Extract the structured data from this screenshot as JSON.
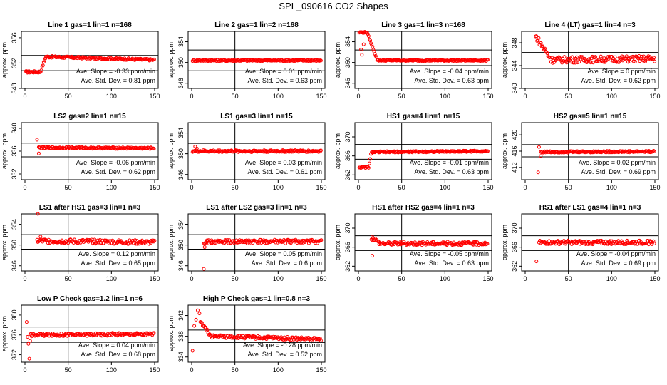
{
  "page": {
    "title": "SPL_090616  CO2 Shapes"
  },
  "chart_data": [
    {
      "type": "scatter",
      "title": "Line 1 gas=1 lin=1 n=168",
      "ylabel": "approx. ppm",
      "xlim": [
        0,
        150
      ],
      "ylim": [
        348,
        357
      ],
      "yticks": [
        "348",
        "352",
        "356"
      ],
      "xticks": [
        "0",
        "50",
        "100",
        "150"
      ],
      "bands": [
        350.8,
        353.2
      ],
      "vline": 50,
      "slope": "Ave. Slope = -0.33  ppm/min",
      "stddev": "Ave. Std. Dev. = 0.81  ppm",
      "shape": {
        "x0": 1,
        "pre_x": 18,
        "pre_v": 350.6,
        "ramp_x": 24,
        "base": 353.0,
        "base_end": 352.5,
        "noise": 0.15,
        "outliers": []
      }
    },
    {
      "type": "scatter",
      "title": "Line 2 gas=1 lin=2 n=168",
      "ylabel": "approx. ppm",
      "xlim": [
        0,
        150
      ],
      "ylim": [
        345,
        356
      ],
      "yticks": [
        "346",
        "350",
        "354"
      ],
      "xticks": [
        "0",
        "50",
        "100",
        "150"
      ],
      "bands": [
        348.4,
        352.4
      ],
      "vline": 50,
      "slope": "Ave. Slope = 0.01  ppm/min",
      "stddev": "Ave. Std. Dev. = 0.63  ppm",
      "shape": {
        "x0": 1,
        "pre_x": 1,
        "pre_v": 350.4,
        "ramp_x": 1,
        "base": 350.4,
        "base_end": 350.4,
        "noise": 0.15,
        "outliers": []
      }
    },
    {
      "type": "scatter",
      "title": "Line 3 gas=1 lin=3 n=168",
      "ylabel": "approx. ppm",
      "xlim": [
        0,
        150
      ],
      "ylim": [
        345,
        356
      ],
      "yticks": [
        "346",
        "350",
        "354"
      ],
      "xticks": [
        "0",
        "50",
        "100",
        "150"
      ],
      "bands": [
        349.4,
        352.4
      ],
      "vline": 50,
      "slope": "Ave. Slope = -0.04  ppm/min",
      "stddev": "Ave. Std. Dev. = 0.63  ppm",
      "shape": {
        "x0": 1,
        "pre_x": 10,
        "pre_v": 355.8,
        "ramp_x": 22,
        "base": 350.4,
        "base_end": 350.4,
        "noise": 0.12,
        "outliers": [
          [
            3,
            352.5
          ],
          [
            4,
            351.5
          ],
          [
            6,
            353.5
          ]
        ]
      }
    },
    {
      "type": "scatter",
      "title": "Line 4 (LT) gas=1 lin=4 n=3",
      "ylabel": "approx. ppm",
      "xlim": [
        0,
        150
      ],
      "ylim": [
        340,
        350
      ],
      "yticks": [
        "340",
        "344",
        "348"
      ],
      "xticks": [
        "0",
        "50",
        "100",
        "150"
      ],
      "bands": [
        343.5,
        346.3
      ],
      "vline": 50,
      "slope": "Ave. Slope = 0  ppm/min",
      "stddev": "Ave. Std. Dev. = 0.62  ppm",
      "shape": {
        "x0": 12,
        "pre_x": 13,
        "pre_v": 349.0,
        "ramp_x": 30,
        "base": 345.0,
        "base_end": 345.2,
        "noise": 0.55,
        "outliers": []
      }
    },
    {
      "type": "scatter",
      "title": "LS2 gas=2 lin=1 n=15",
      "ylabel": "approx. ppm",
      "xlim": [
        0,
        150
      ],
      "ylim": [
        331,
        341
      ],
      "yticks": [
        "332",
        "336",
        "340"
      ],
      "xticks": [
        "0",
        "50",
        "100",
        "150"
      ],
      "bands": [
        335.0,
        337.4
      ],
      "vline": 50,
      "slope": "Ave. Slope = -0.06  ppm/min",
      "stddev": "Ave. Std. Dev. = 0.62  ppm",
      "shape": {
        "x0": 16,
        "pre_x": 16,
        "pre_v": 336.6,
        "ramp_x": 16,
        "base": 336.6,
        "base_end": 336.5,
        "noise": 0.15,
        "outliers": [
          [
            14,
            338.0
          ],
          [
            16,
            335.6
          ]
        ]
      }
    },
    {
      "type": "scatter",
      "title": "LS1 gas=3 lin=1 n=15",
      "ylabel": "approx. ppm",
      "xlim": [
        0,
        150
      ],
      "ylim": [
        345,
        356
      ],
      "yticks": [
        "346",
        "350",
        "354"
      ],
      "xticks": [
        "0",
        "50",
        "100",
        "150"
      ],
      "bands": [
        349.2,
        352.0
      ],
      "vline": 50,
      "slope": "Ave. Slope = 0.03  ppm/min",
      "stddev": "Ave. Std. Dev. = 0.61  ppm",
      "shape": {
        "x0": 1,
        "pre_x": 1,
        "pre_v": 350.6,
        "ramp_x": 1,
        "base": 350.5,
        "base_end": 350.5,
        "noise": 0.2,
        "outliers": [
          [
            4,
            351.4
          ],
          [
            6,
            351.0
          ]
        ]
      }
    },
    {
      "type": "scatter",
      "title": "HS1 gas=4 lin=1 n=15",
      "ylabel": "approx. ppm",
      "xlim": [
        0,
        150
      ],
      "ylim": [
        361,
        373
      ],
      "yticks": [
        "362",
        "366",
        "370"
      ],
      "xticks": [
        "0",
        "50",
        "100",
        "150"
      ],
      "bands": [
        365.3,
        368.4
      ],
      "vline": 50,
      "slope": "Ave. Slope = -0.01  ppm/min",
      "stddev": "Ave. Std. Dev. = 0.63  ppm",
      "shape": {
        "x0": 1,
        "pre_x": 12,
        "pre_v": 363.6,
        "ramp_x": 15,
        "base": 366.8,
        "base_end": 367.0,
        "noise": 0.15,
        "outliers": []
      }
    },
    {
      "type": "scatter",
      "title": "HS2 gas=5 lin=1 n=15",
      "ylabel": "approx. ppm",
      "xlim": [
        0,
        150
      ],
      "ylim": [
        409,
        423
      ],
      "yticks": [
        "412",
        "416",
        "420"
      ],
      "xticks": [
        "0",
        "50",
        "100",
        "150"
      ],
      "bands": [
        414.6,
        417.6
      ],
      "vline": 50,
      "slope": "Ave. Slope = 0.02  ppm/min",
      "stddev": "Ave. Std. Dev. = 0.69  ppm",
      "shape": {
        "x0": 18,
        "pre_x": 18,
        "pre_v": 415.8,
        "ramp_x": 18,
        "base": 415.8,
        "base_end": 415.9,
        "noise": 0.2,
        "outliers": [
          [
            15,
            410.8
          ],
          [
            16,
            417.0
          ],
          [
            18,
            414.8
          ]
        ]
      }
    },
    {
      "type": "scatter",
      "title": "LS1 after HS1 gas=3 lin=1 n=3",
      "ylabel": "approx. ppm",
      "xlim": [
        0,
        150
      ],
      "ylim": [
        345,
        356
      ],
      "yticks": [
        "346",
        "350",
        "354"
      ],
      "xticks": [
        "0",
        "50",
        "100",
        "150"
      ],
      "bands": [
        349.2,
        352.0
      ],
      "vline": 50,
      "slope": "Ave. Slope = 0.12  ppm/min",
      "stddev": "Ave. Std. Dev. = 0.65  ppm",
      "shape": {
        "x0": 14,
        "pre_x": 14,
        "pre_v": 350.8,
        "ramp_x": 14,
        "base": 350.8,
        "base_end": 350.5,
        "noise": 0.4,
        "outliers": [
          [
            15,
            356.0
          ],
          [
            18,
            351.6
          ]
        ]
      }
    },
    {
      "type": "scatter",
      "title": "LS1 after LS2 gas=3 lin=1 n=3",
      "ylabel": "approx. ppm",
      "xlim": [
        0,
        150
      ],
      "ylim": [
        345,
        356
      ],
      "yticks": [
        "346",
        "350",
        "354"
      ],
      "xticks": [
        "0",
        "50",
        "100",
        "150"
      ],
      "bands": [
        349.2,
        352.0
      ],
      "vline": 50,
      "slope": "Ave. Slope = 0.05  ppm/min",
      "stddev": "Ave. Std. Dev. = 0.6  ppm",
      "shape": {
        "x0": 14,
        "pre_x": 14,
        "pre_v": 350.6,
        "ramp_x": 14,
        "base": 350.6,
        "base_end": 350.7,
        "noise": 0.35,
        "outliers": [
          [
            14,
            345.4
          ],
          [
            15,
            349.6
          ]
        ]
      }
    },
    {
      "type": "scatter",
      "title": "HS1 after HS2 gas=4 lin=1 n=3",
      "ylabel": "approx. ppm",
      "xlim": [
        0,
        150
      ],
      "ylim": [
        361,
        373
      ],
      "yticks": [
        "362",
        "366",
        "370"
      ],
      "xticks": [
        "0",
        "50",
        "100",
        "150"
      ],
      "bands": [
        365.3,
        368.4
      ],
      "vline": 50,
      "slope": "Ave. Slope = -0.05  ppm/min",
      "stddev": "Ave. Std. Dev. = 0.63  ppm",
      "shape": {
        "x0": 15,
        "pre_x": 18,
        "pre_v": 367.8,
        "ramp_x": 25,
        "base": 366.8,
        "base_end": 366.8,
        "noise": 0.35,
        "outliers": [
          [
            16,
            364.2
          ],
          [
            16,
            368.2
          ]
        ]
      }
    },
    {
      "type": "scatter",
      "title": "HS1 after LS1 gas=4 lin=1 n=3",
      "ylabel": "approx. ppm",
      "xlim": [
        0,
        150
      ],
      "ylim": [
        361,
        373
      ],
      "yticks": [
        "362",
        "366",
        "370"
      ],
      "xticks": [
        "0",
        "50",
        "100",
        "150"
      ],
      "bands": [
        365.3,
        368.4
      ],
      "vline": 50,
      "slope": "Ave. Slope = -0.04  ppm/min",
      "stddev": "Ave. Std. Dev. = 0.69  ppm",
      "shape": {
        "x0": 16,
        "pre_x": 16,
        "pre_v": 367.0,
        "ramp_x": 16,
        "base": 367.0,
        "base_end": 367.0,
        "noise": 0.4,
        "outliers": [
          [
            13,
            363.0
          ]
        ]
      }
    },
    {
      "type": "scatter",
      "title": "Low P Check gas=1.2 lin=1 n=6",
      "ylabel": "approx. ppm",
      "xlim": [
        0,
        150
      ],
      "ylim": [
        370.5,
        382
      ],
      "yticks": [
        "372",
        "376",
        "380"
      ],
      "xticks": [
        "0",
        "50",
        "100",
        "150"
      ],
      "bands": [
        374.5,
        377.6
      ],
      "vline": 50,
      "slope": "Ave. Slope = 0.04  ppm/min",
      "stddev": "Ave. Std. Dev. = 0.68  ppm",
      "shape": {
        "x0": 6,
        "pre_x": 6,
        "pre_v": 376.2,
        "ramp_x": 6,
        "base": 376.0,
        "base_end": 376.2,
        "noise": 0.3,
        "outliers": [
          [
            2,
            378.6
          ],
          [
            3,
            375.6
          ],
          [
            4,
            374.2
          ],
          [
            5,
            371.2
          ],
          [
            6,
            374.8
          ]
        ]
      }
    },
    {
      "type": "scatter",
      "title": "High P Check gas=1 lin=0.8 n=3",
      "ylabel": "approx. ppm",
      "xlim": [
        0,
        150
      ],
      "ylim": [
        333,
        344
      ],
      "yticks": [
        "334",
        "338",
        "342"
      ],
      "xticks": [
        "0",
        "50",
        "100",
        "150"
      ],
      "bands": [
        336.8,
        339.2
      ],
      "vline": 50,
      "slope": "Ave. Slope = -0.28  ppm/min",
      "stddev": "Ave. Std. Dev. = 0.52  ppm",
      "shape": {
        "x0": 10,
        "pre_x": 12,
        "pre_v": 340.5,
        "ramp_x": 22,
        "base": 338.0,
        "base_end": 337.4,
        "noise": 0.3,
        "outliers": [
          [
            1,
            335.2
          ],
          [
            3,
            340.0
          ],
          [
            5,
            341.2
          ],
          [
            7,
            343.0
          ],
          [
            9,
            342.4
          ]
        ]
      }
    }
  ]
}
